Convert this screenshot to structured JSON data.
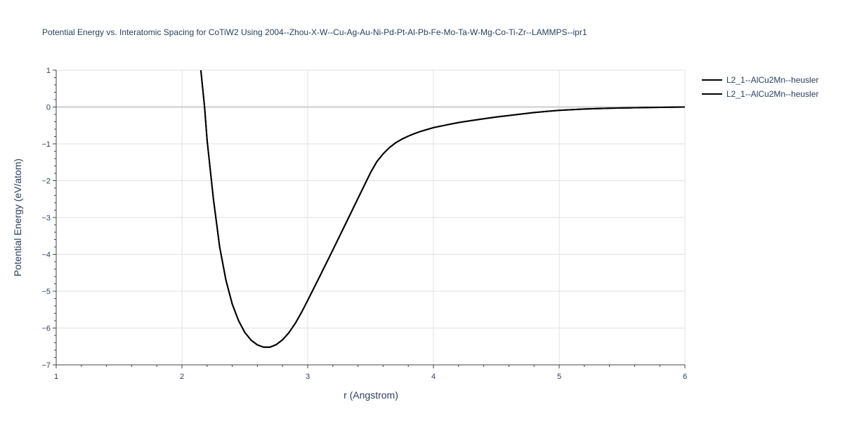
{
  "chart_data": {
    "type": "line",
    "title": "Potential Energy vs. Interatomic Spacing for CoTiW2 Using 2004--Zhou-X-W--Cu-Ag-Au-Ni-Pd-Pt-Al-Pb-Fe-Mo-Ta-W-Mg-Co-Ti-Zr--LAMMPS--ipr1",
    "xlabel": "r (Angstrom)",
    "ylabel": "Potential Energy (eV/atom)",
    "xlim": [
      1,
      6
    ],
    "ylim": [
      -7,
      1
    ],
    "xticks": [
      1,
      2,
      3,
      4,
      5,
      6
    ],
    "yticks": [
      1,
      0,
      -1,
      -2,
      -3,
      -4,
      -5,
      -6,
      -7
    ],
    "ytick_labels": [
      "1",
      "0",
      "−1",
      "−2",
      "−3",
      "−4",
      "−5",
      "−6",
      "−7"
    ],
    "grid": true,
    "legend_position": "top-right",
    "series": [
      {
        "name": "L2_1--AlCu2Mn--heusler",
        "color": "#000000",
        "x": [
          2.15,
          2.18,
          2.2,
          2.25,
          2.3,
          2.35,
          2.4,
          2.45,
          2.5,
          2.55,
          2.6,
          2.65,
          2.7,
          2.75,
          2.8,
          2.85,
          2.9,
          2.95,
          3.0,
          3.1,
          3.2,
          3.3,
          3.4,
          3.5,
          3.55,
          3.6,
          3.65,
          3.7,
          3.75,
          3.8,
          3.85,
          3.9,
          3.95,
          4.0,
          4.1,
          4.2,
          4.3,
          4.4,
          4.5,
          4.6,
          4.7,
          4.8,
          4.9,
          5.0,
          5.2,
          5.4,
          5.6,
          5.8,
          6.0
        ],
        "y": [
          1.0,
          0.0,
          -0.9,
          -2.5,
          -3.8,
          -4.7,
          -5.35,
          -5.8,
          -6.12,
          -6.33,
          -6.46,
          -6.52,
          -6.52,
          -6.45,
          -6.32,
          -6.13,
          -5.88,
          -5.58,
          -5.25,
          -4.57,
          -3.88,
          -3.18,
          -2.48,
          -1.78,
          -1.48,
          -1.27,
          -1.1,
          -0.97,
          -0.87,
          -0.79,
          -0.72,
          -0.66,
          -0.61,
          -0.56,
          -0.49,
          -0.42,
          -0.37,
          -0.32,
          -0.27,
          -0.23,
          -0.19,
          -0.15,
          -0.12,
          -0.09,
          -0.055,
          -0.035,
          -0.02,
          -0.01,
          0.0
        ]
      },
      {
        "name": "L2_1--AlCu2Mn--heusler",
        "color": "#000000",
        "x": [
          2.15,
          2.18,
          2.2,
          2.25,
          2.3,
          2.35,
          2.4,
          2.45,
          2.5,
          2.55,
          2.6,
          2.65,
          2.7,
          2.75,
          2.8,
          2.85,
          2.9,
          2.95,
          3.0,
          3.1,
          3.2,
          3.3,
          3.4,
          3.5,
          3.55,
          3.6,
          3.65,
          3.7,
          3.75,
          3.8,
          3.85,
          3.9,
          3.95,
          4.0,
          4.1,
          4.2,
          4.3,
          4.4,
          4.5,
          4.6,
          4.7,
          4.8,
          4.9,
          5.0,
          5.2,
          5.4,
          5.6,
          5.8,
          6.0
        ],
        "y": [
          1.0,
          0.0,
          -0.9,
          -2.5,
          -3.8,
          -4.7,
          -5.35,
          -5.8,
          -6.12,
          -6.33,
          -6.46,
          -6.52,
          -6.52,
          -6.45,
          -6.32,
          -6.13,
          -5.88,
          -5.58,
          -5.25,
          -4.57,
          -3.88,
          -3.18,
          -2.48,
          -1.78,
          -1.48,
          -1.27,
          -1.1,
          -0.97,
          -0.87,
          -0.79,
          -0.72,
          -0.66,
          -0.61,
          -0.56,
          -0.49,
          -0.42,
          -0.37,
          -0.32,
          -0.27,
          -0.23,
          -0.19,
          -0.15,
          -0.12,
          -0.09,
          -0.055,
          -0.035,
          -0.02,
          -0.01,
          0.0
        ]
      }
    ]
  }
}
